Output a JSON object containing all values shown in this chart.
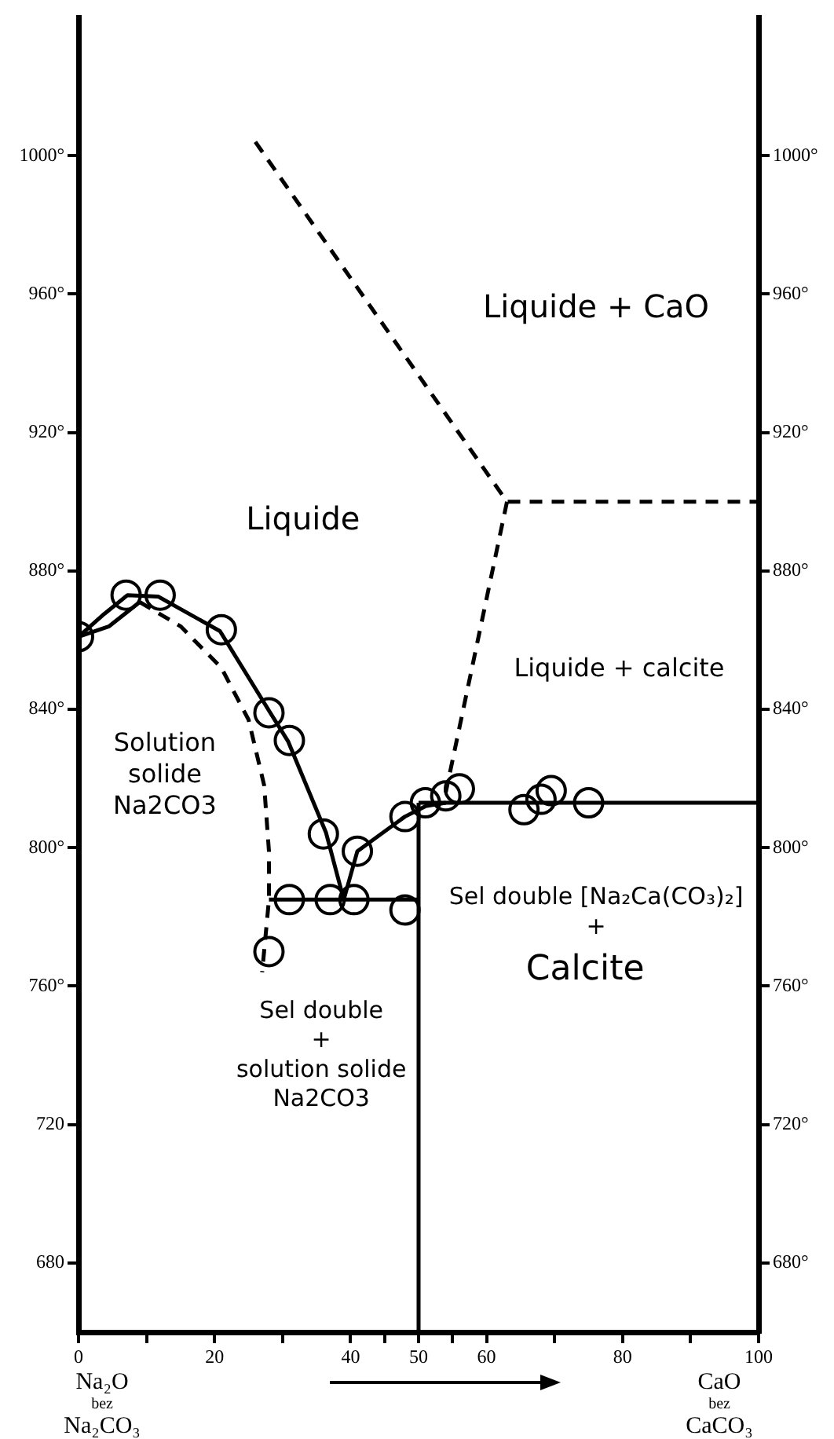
{
  "chart_data": {
    "type": "scatter",
    "xlim": [
      0,
      100
    ],
    "xticks": [
      0,
      {
        "value": 10,
        "label": null
      },
      20,
      {
        "value": 30,
        "label": null
      },
      40,
      {
        "value": 45,
        "label": null
      },
      50,
      {
        "value": 55,
        "label": null
      },
      60,
      {
        "value": 70,
        "label": null
      },
      80,
      {
        "value": 90,
        "label": null
      },
      100
    ],
    "ylim": [
      660,
      1040
    ],
    "yticks": [
      {
        "value": 680,
        "label": "680"
      },
      {
        "value": 720,
        "label": "720"
      },
      {
        "value": 760,
        "label": "760°"
      },
      {
        "value": 800,
        "label": "800°"
      },
      {
        "value": 840,
        "label": "840°"
      },
      {
        "value": 880,
        "label": "880°"
      },
      {
        "value": 920,
        "label": "920°"
      },
      {
        "value": 960,
        "label": "960°"
      },
      {
        "value": 1000,
        "label": "1000°"
      }
    ],
    "y2lim": [
      660,
      1040
    ],
    "y2ticks": [
      {
        "value": 680,
        "label": "680°"
      },
      {
        "value": 720,
        "label": "720°"
      },
      {
        "value": 760,
        "label": "760°"
      },
      {
        "value": 800,
        "label": "800°"
      },
      {
        "value": 840,
        "label": "840°"
      },
      {
        "value": 880,
        "label": "880°"
      },
      {
        "value": 920,
        "label": "920°"
      },
      {
        "value": 960,
        "label": "960°"
      },
      {
        "value": 1000,
        "label": "1000°"
      }
    ],
    "grid": false,
    "legend": false,
    "series": [
      {
        "color": "#000000",
        "marker": "circle",
        "x": [
          0,
          7,
          12,
          21,
          28,
          31,
          36,
          41,
          31,
          37,
          40.5,
          48,
          28,
          48,
          51,
          54,
          56,
          65.5,
          68,
          69.5,
          75
        ],
        "values": [
          861,
          873,
          873,
          863,
          839,
          831,
          804,
          799,
          785,
          785,
          785,
          782,
          770,
          809,
          813,
          815,
          817,
          811,
          814,
          816.5,
          813
        ]
      },
      {
        "type": "line",
        "color": "#000000",
        "marker": "none",
        "line_style": "solid",
        "x": [
          0,
          3.8,
          7.2,
          11.7,
          20.8,
          28.2,
          30.8,
          36.4,
          39
        ],
        "values": [
          861,
          867.6,
          873,
          872.6,
          862.6,
          839,
          830.8,
          804.3,
          785
        ]
      },
      {
        "type": "line",
        "color": "#000000",
        "marker": "none",
        "line_style": "solid",
        "x": [
          0,
          4.5,
          9
        ],
        "values": [
          861,
          864,
          871
        ]
      },
      {
        "type": "line",
        "color": "#000000",
        "marker": "none",
        "line_style": "solid",
        "x": [
          39,
          41,
          48,
          51,
          54
        ],
        "values": [
          785,
          799,
          809,
          812,
          813
        ]
      },
      {
        "type": "line",
        "color": "#000000",
        "marker": "none",
        "line_style": "solid",
        "x": [
          50,
          100
        ],
        "values": [
          813,
          813
        ]
      },
      {
        "type": "line",
        "color": "#000000",
        "marker": "none",
        "line_style": "solid",
        "x": [
          28,
          50
        ],
        "values": [
          785,
          785
        ]
      },
      {
        "type": "line",
        "color": "#000000",
        "marker": "none",
        "line_style": "solid",
        "x": [
          50,
          50
        ],
        "values": [
          660,
          813
        ]
      },
      {
        "type": "line",
        "color": "#000000",
        "marker": "none",
        "line_style": "dashed",
        "x": [
          9,
          15,
          21,
          25,
          27.3,
          28,
          28,
          27
        ],
        "values": [
          871,
          864,
          852,
          837,
          818,
          799,
          785,
          764
        ]
      },
      {
        "type": "line",
        "color": "#000000",
        "marker": "none",
        "line_style": "dashed",
        "x": [
          26,
          63,
          100
        ],
        "values": [
          1004,
          900,
          900
        ]
      },
      {
        "type": "line",
        "color": "#000000",
        "marker": "none",
        "line_style": "dashed",
        "x": [
          63,
          54
        ],
        "values": [
          900,
          816
        ]
      }
    ],
    "annotations": [
      "Liquide",
      "Liquide + CaO",
      "Liquide + calcite",
      "Solution\nsolide\nNa2CO3",
      "Sel double\n+\nsolution solide\nNa2CO3",
      "Sel double [Na₂Ca(CO₃)₂]\n+",
      "Calcite",
      "Na₂O\nbez\nNa₂CO₃",
      "CaO\nbez\nCaCO₃"
    ]
  }
}
